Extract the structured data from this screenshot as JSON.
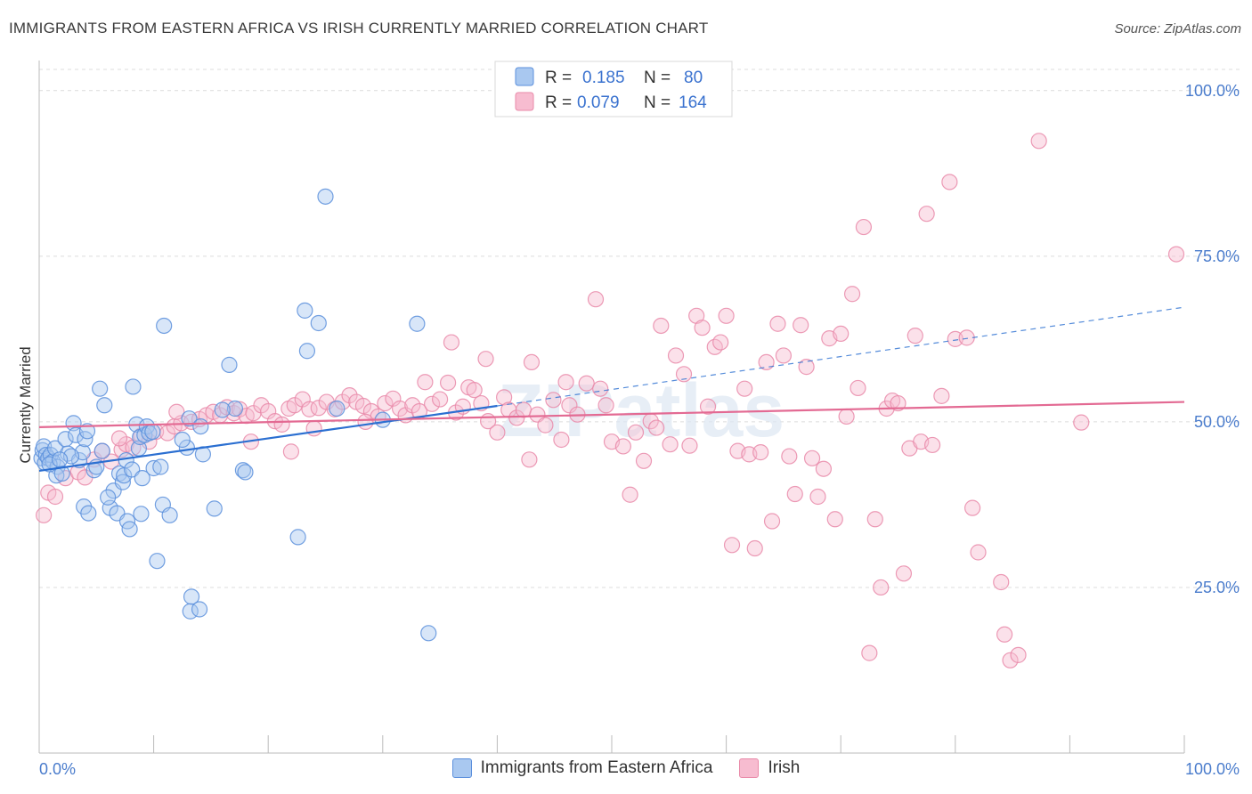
{
  "header": {
    "title": "IMMIGRANTS FROM EASTERN AFRICA VS IRISH CURRENTLY MARRIED CORRELATION CHART",
    "source": "Source: ZipAtlas.com"
  },
  "watermark": "ZIPatlas",
  "chart_data": {
    "type": "scatter",
    "title": "IMMIGRANTS FROM EASTERN AFRICA VS IRISH CURRENTLY MARRIED CORRELATION CHART",
    "xlabel": "",
    "ylabel": "Currently Married",
    "xlim": [
      0,
      100
    ],
    "ylim": [
      0,
      104
    ],
    "x_tick_labels": [
      "0.0%",
      "100.0%"
    ],
    "y_ticks": [
      25,
      50,
      75,
      100
    ],
    "y_tick_labels": [
      "25.0%",
      "50.0%",
      "75.0%",
      "100.0%"
    ],
    "grid": true,
    "legend": {
      "position": "top-center",
      "entries": [
        {
          "r_label": "R =",
          "r_value": "0.185",
          "n_label": "N =",
          "n_value": "80"
        },
        {
          "r_label": "R =",
          "r_value": "0.079",
          "n_label": "N =",
          "n_value": "164"
        }
      ]
    },
    "colors": {
      "blue_fill": "#a9c8f0",
      "blue_stroke": "#5b8fdc",
      "blue_line": "#2b6fd1",
      "pink_fill": "#f7bcd0",
      "pink_stroke": "#e98aa9",
      "pink_line": "#e36a93",
      "axis_text": "#4a7ccc"
    },
    "series": [
      {
        "name": "Immigrants from Eastern Africa",
        "color": "#5b8fdc",
        "trend": {
          "x0": 0,
          "y0": 42.6,
          "x1": 40,
          "y1": 52.4,
          "dashed_to_x": 100,
          "dashed_to_y": 67.3
        },
        "points": [
          [
            0.2,
            44.5
          ],
          [
            0.3,
            45.7
          ],
          [
            0.4,
            46.3
          ],
          [
            0.5,
            43.8
          ],
          [
            0.6,
            45.0
          ],
          [
            0.8,
            44.5
          ],
          [
            1.0,
            45.0
          ],
          [
            1.2,
            44.0
          ],
          [
            1.4,
            46.0
          ],
          [
            1.6,
            43.2
          ],
          [
            1.5,
            41.9
          ],
          [
            2.0,
            42.2
          ],
          [
            2.3,
            47.4
          ],
          [
            2.5,
            45.2
          ],
          [
            3.0,
            49.8
          ],
          [
            3.2,
            48.0
          ],
          [
            3.5,
            44.2
          ],
          [
            3.8,
            45.4
          ],
          [
            4.0,
            47.4
          ],
          [
            4.2,
            48.6
          ],
          [
            3.9,
            37.2
          ],
          [
            4.3,
            36.2
          ],
          [
            4.8,
            42.7
          ],
          [
            5.0,
            43.2
          ],
          [
            5.3,
            55.0
          ],
          [
            5.7,
            52.5
          ],
          [
            6.2,
            37.0
          ],
          [
            6.5,
            39.6
          ],
          [
            6.8,
            36.2
          ],
          [
            7.0,
            42.2
          ],
          [
            7.3,
            40.9
          ],
          [
            7.4,
            41.9
          ],
          [
            7.7,
            35.0
          ],
          [
            7.9,
            33.8
          ],
          [
            7.6,
            44.2
          ],
          [
            8.1,
            42.8
          ],
          [
            8.2,
            55.3
          ],
          [
            8.5,
            49.6
          ],
          [
            8.7,
            46.0
          ],
          [
            8.8,
            47.7
          ],
          [
            8.9,
            36.1
          ],
          [
            9.2,
            48.0
          ],
          [
            9.4,
            49.3
          ],
          [
            9.6,
            48.3
          ],
          [
            9.9,
            48.5
          ],
          [
            10.0,
            43.0
          ],
          [
            10.3,
            29.0
          ],
          [
            10.6,
            43.2
          ],
          [
            10.8,
            37.5
          ],
          [
            10.9,
            64.5
          ],
          [
            11.4,
            35.9
          ],
          [
            12.9,
            46.1
          ],
          [
            13.2,
            21.4
          ],
          [
            13.3,
            23.6
          ],
          [
            13.1,
            50.5
          ],
          [
            14.0,
            21.7
          ],
          [
            14.1,
            49.3
          ],
          [
            14.3,
            45.1
          ],
          [
            15.3,
            36.9
          ],
          [
            16.6,
            58.6
          ],
          [
            17.1,
            52.0
          ],
          [
            17.8,
            42.7
          ],
          [
            18.0,
            42.4
          ],
          [
            22.6,
            32.6
          ],
          [
            23.2,
            66.8
          ],
          [
            23.4,
            60.7
          ],
          [
            24.4,
            64.9
          ],
          [
            25.0,
            84.0
          ],
          [
            33.0,
            64.8
          ],
          [
            34.0,
            18.1
          ],
          [
            2.8,
            44.8
          ],
          [
            6.0,
            38.6
          ],
          [
            0.9,
            43.6
          ],
          [
            1.8,
            44.3
          ],
          [
            5.5,
            45.6
          ],
          [
            9.0,
            41.5
          ],
          [
            12.5,
            47.3
          ],
          [
            16.0,
            51.8
          ],
          [
            26.0,
            52.0
          ],
          [
            30.0,
            50.3
          ]
        ]
      },
      {
        "name": "Irish",
        "color": "#e98aa9",
        "trend": {
          "x0": 0,
          "y0": 49.2,
          "x1": 100,
          "y1": 53.0
        },
        "points": [
          [
            0.4,
            35.9
          ],
          [
            0.8,
            39.3
          ],
          [
            1.4,
            38.7
          ],
          [
            2.3,
            41.5
          ],
          [
            3.4,
            42.4
          ],
          [
            4.0,
            41.6
          ],
          [
            4.8,
            44.3
          ],
          [
            5.5,
            45.6
          ],
          [
            6.3,
            44.0
          ],
          [
            7.2,
            45.8
          ],
          [
            7.6,
            46.6
          ],
          [
            8.2,
            46.1
          ],
          [
            8.9,
            47.9
          ],
          [
            9.6,
            47.0
          ],
          [
            10.2,
            48.5
          ],
          [
            11.2,
            48.3
          ],
          [
            11.8,
            49.3
          ],
          [
            12.4,
            49.8
          ],
          [
            13.3,
            50.0
          ],
          [
            14.0,
            50.4
          ],
          [
            14.6,
            51.0
          ],
          [
            15.2,
            51.5
          ],
          [
            15.8,
            51.0
          ],
          [
            16.4,
            52.2
          ],
          [
            17.0,
            51.3
          ],
          [
            17.5,
            51.9
          ],
          [
            18.1,
            50.9
          ],
          [
            18.7,
            51.3
          ],
          [
            19.4,
            52.5
          ],
          [
            20.0,
            51.6
          ],
          [
            20.6,
            50.1
          ],
          [
            21.2,
            49.6
          ],
          [
            21.8,
            52.0
          ],
          [
            22.3,
            52.5
          ],
          [
            23.0,
            53.4
          ],
          [
            23.6,
            51.9
          ],
          [
            24.4,
            52.1
          ],
          [
            25.1,
            53.0
          ],
          [
            25.8,
            51.9
          ],
          [
            26.5,
            53.0
          ],
          [
            27.1,
            54.0
          ],
          [
            27.7,
            53.0
          ],
          [
            28.3,
            52.4
          ],
          [
            29.0,
            51.6
          ],
          [
            29.6,
            50.8
          ],
          [
            30.2,
            52.8
          ],
          [
            30.9,
            53.5
          ],
          [
            31.5,
            52.0
          ],
          [
            32.0,
            51.0
          ],
          [
            32.6,
            52.5
          ],
          [
            33.2,
            51.6
          ],
          [
            33.7,
            56.0
          ],
          [
            34.3,
            52.7
          ],
          [
            35.0,
            53.4
          ],
          [
            35.7,
            55.9
          ],
          [
            36.4,
            51.4
          ],
          [
            37.0,
            52.3
          ],
          [
            37.5,
            55.2
          ],
          [
            38.0,
            54.8
          ],
          [
            38.6,
            52.8
          ],
          [
            39.2,
            50.1
          ],
          [
            40.0,
            48.4
          ],
          [
            40.6,
            53.7
          ],
          [
            41.0,
            51.8
          ],
          [
            41.7,
            50.6
          ],
          [
            42.3,
            51.8
          ],
          [
            42.8,
            44.3
          ],
          [
            43.5,
            51.1
          ],
          [
            44.2,
            49.5
          ],
          [
            44.9,
            53.3
          ],
          [
            45.6,
            47.3
          ],
          [
            46.3,
            52.5
          ],
          [
            47.0,
            51.1
          ],
          [
            47.8,
            55.8
          ],
          [
            48.6,
            68.5
          ],
          [
            49.5,
            52.5
          ],
          [
            50.0,
            47.0
          ],
          [
            51.0,
            46.3
          ],
          [
            51.6,
            39.0
          ],
          [
            52.1,
            48.4
          ],
          [
            52.8,
            44.1
          ],
          [
            53.4,
            50.1
          ],
          [
            53.9,
            49.1
          ],
          [
            54.3,
            64.5
          ],
          [
            55.1,
            46.6
          ],
          [
            55.6,
            60.0
          ],
          [
            56.3,
            57.2
          ],
          [
            56.8,
            46.4
          ],
          [
            57.4,
            66.0
          ],
          [
            57.9,
            64.2
          ],
          [
            58.4,
            52.3
          ],
          [
            59.0,
            61.3
          ],
          [
            59.5,
            62.0
          ],
          [
            60.0,
            66.0
          ],
          [
            60.5,
            31.4
          ],
          [
            61.0,
            45.6
          ],
          [
            61.6,
            55.0
          ],
          [
            62.0,
            45.1
          ],
          [
            62.5,
            30.9
          ],
          [
            63.0,
            45.4
          ],
          [
            63.5,
            59.0
          ],
          [
            64.0,
            35.0
          ],
          [
            64.5,
            64.8
          ],
          [
            65.0,
            60.0
          ],
          [
            65.5,
            44.8
          ],
          [
            66.0,
            39.1
          ],
          [
            66.5,
            64.6
          ],
          [
            67.0,
            58.3
          ],
          [
            67.5,
            44.5
          ],
          [
            68.0,
            38.7
          ],
          [
            68.5,
            42.9
          ],
          [
            69.0,
            62.6
          ],
          [
            69.5,
            35.3
          ],
          [
            70.0,
            63.3
          ],
          [
            70.5,
            50.8
          ],
          [
            71.0,
            69.3
          ],
          [
            71.5,
            55.1
          ],
          [
            72.0,
            79.4
          ],
          [
            72.5,
            15.1
          ],
          [
            73.0,
            35.3
          ],
          [
            73.5,
            25.0
          ],
          [
            74.0,
            52.0
          ],
          [
            74.5,
            53.2
          ],
          [
            75.0,
            52.8
          ],
          [
            75.5,
            27.1
          ],
          [
            76.0,
            46.0
          ],
          [
            76.5,
            63.0
          ],
          [
            77.0,
            47.0
          ],
          [
            77.5,
            81.4
          ],
          [
            78.0,
            46.5
          ],
          [
            78.8,
            53.9
          ],
          [
            79.5,
            86.2
          ],
          [
            80.0,
            62.5
          ],
          [
            81.0,
            62.7
          ],
          [
            81.5,
            37.0
          ],
          [
            82.0,
            30.3
          ],
          [
            84.0,
            25.8
          ],
          [
            84.3,
            17.9
          ],
          [
            84.8,
            14.0
          ],
          [
            85.5,
            14.8
          ],
          [
            87.3,
            92.4
          ],
          [
            91.0,
            49.9
          ],
          [
            99.3,
            75.3
          ],
          [
            49.0,
            55.0
          ],
          [
            18.5,
            47.0
          ],
          [
            22.0,
            45.5
          ],
          [
            46.0,
            56.0
          ],
          [
            39.0,
            59.5
          ],
          [
            43.0,
            59.0
          ],
          [
            36.0,
            62.0
          ],
          [
            28.5,
            50.0
          ],
          [
            12.0,
            51.5
          ],
          [
            7.0,
            47.5
          ],
          [
            24.0,
            49.0
          ]
        ]
      }
    ]
  },
  "bottom_legend": {
    "items": [
      {
        "label": "Immigrants from Eastern Africa"
      },
      {
        "label": "Irish"
      }
    ]
  }
}
